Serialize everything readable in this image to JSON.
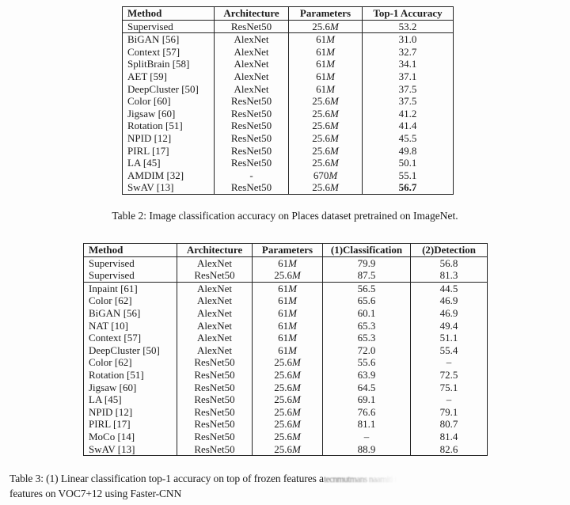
{
  "table2": {
    "headers": [
      "Method",
      "Architecture",
      "Parameters",
      "Top-1 Accuracy"
    ],
    "rows": [
      {
        "cells": [
          "Supervised",
          "ResNet50",
          "25.6M",
          "53.2"
        ]
      },
      {
        "cells": [
          "BiGAN [56]",
          "AlexNet",
          "61M",
          "31.0"
        ],
        "rule_above": true
      },
      {
        "cells": [
          "Context [57]",
          "AlexNet",
          "61M",
          "32.7"
        ]
      },
      {
        "cells": [
          "SplitBrain [58]",
          "AlexNet",
          "61M",
          "34.1"
        ]
      },
      {
        "cells": [
          "AET [59]",
          "AlexNet",
          "61M",
          "37.1"
        ]
      },
      {
        "cells": [
          "DeepCluster [50]",
          "AlexNet",
          "61M",
          "37.5"
        ]
      },
      {
        "cells": [
          "Color [60]",
          "ResNet50",
          "25.6M",
          "37.5"
        ]
      },
      {
        "cells": [
          "Jigsaw [60]",
          "ResNet50",
          "25.6M",
          "41.2"
        ]
      },
      {
        "cells": [
          "Rotation [51]",
          "ResNet50",
          "25.6M",
          "41.4"
        ]
      },
      {
        "cells": [
          "NPID [12]",
          "ResNet50",
          "25.6M",
          "45.5"
        ]
      },
      {
        "cells": [
          "PIRL [17]",
          "ResNet50",
          "25.6M",
          "49.8"
        ]
      },
      {
        "cells": [
          "LA [45]",
          "ResNet50",
          "25.6M",
          "50.1"
        ]
      },
      {
        "cells": [
          "AMDIM [32]",
          "-",
          "670M",
          "55.1"
        ]
      },
      {
        "cells": [
          "SwAV [13]",
          "ResNet50",
          "25.6M",
          "56.7"
        ],
        "bold": [
          3
        ]
      }
    ],
    "caption": "Table 2: Image classification accuracy on Places dataset pretrained on ImageNet."
  },
  "table3": {
    "headers": [
      "Method",
      "Architecture",
      "Parameters",
      "(1)Classification",
      "(2)Detection"
    ],
    "rows": [
      {
        "cells": [
          "Supervised",
          "AlexNet",
          "61M",
          "79.9",
          "56.8"
        ]
      },
      {
        "cells": [
          "Supervised",
          "ResNet50",
          "25.6M",
          "87.5",
          "81.3"
        ]
      },
      {
        "cells": [
          "Inpaint [61]",
          "AlexNet",
          "61M",
          "56.5",
          "44.5"
        ],
        "rule_above": true
      },
      {
        "cells": [
          "Color [62]",
          "AlexNet",
          "61M",
          "65.6",
          "46.9"
        ]
      },
      {
        "cells": [
          "BiGAN [56]",
          "AlexNet",
          "61M",
          "60.1",
          "46.9"
        ]
      },
      {
        "cells": [
          "NAT [10]",
          "AlexNet",
          "61M",
          "65.3",
          "49.4"
        ]
      },
      {
        "cells": [
          "Context [57]",
          "AlexNet",
          "61M",
          "65.3",
          "51.1"
        ]
      },
      {
        "cells": [
          "DeepCluster [50]",
          "AlexNet",
          "61M",
          "72.0",
          "55.4"
        ]
      },
      {
        "cells": [
          "Color [62]",
          "ResNet50",
          "25.6M",
          "55.6",
          "–"
        ]
      },
      {
        "cells": [
          "Rotation [51]",
          "ResNet50",
          "25.6M",
          "63.9",
          "72.5"
        ]
      },
      {
        "cells": [
          "Jigsaw [60]",
          "ResNet50",
          "25.6M",
          "64.5",
          "75.1"
        ]
      },
      {
        "cells": [
          "LA [45]",
          "ResNet50",
          "25.6M",
          "69.1",
          "–"
        ]
      },
      {
        "cells": [
          "NPID [12]",
          "ResNet50",
          "25.6M",
          "76.6",
          "79.1"
        ]
      },
      {
        "cells": [
          "PIRL [17]",
          "ResNet50",
          "25.6M",
          "81.1",
          "80.7"
        ]
      },
      {
        "cells": [
          "MoCo [14]",
          "ResNet50",
          "25.6M",
          "–",
          "81.4"
        ]
      },
      {
        "cells": [
          "SwAV [13]",
          "ResNet50",
          "25.6M",
          "88.9",
          "82.6"
        ]
      }
    ],
    "caption_line1": "Table 3: (1) Linear classification top-1 accuracy on top of frozen features a",
    "caption_garbled": "tecnmutmans naamiti i t",
    "caption_line2": "features on VOC7+12 using Faster-CNN"
  }
}
